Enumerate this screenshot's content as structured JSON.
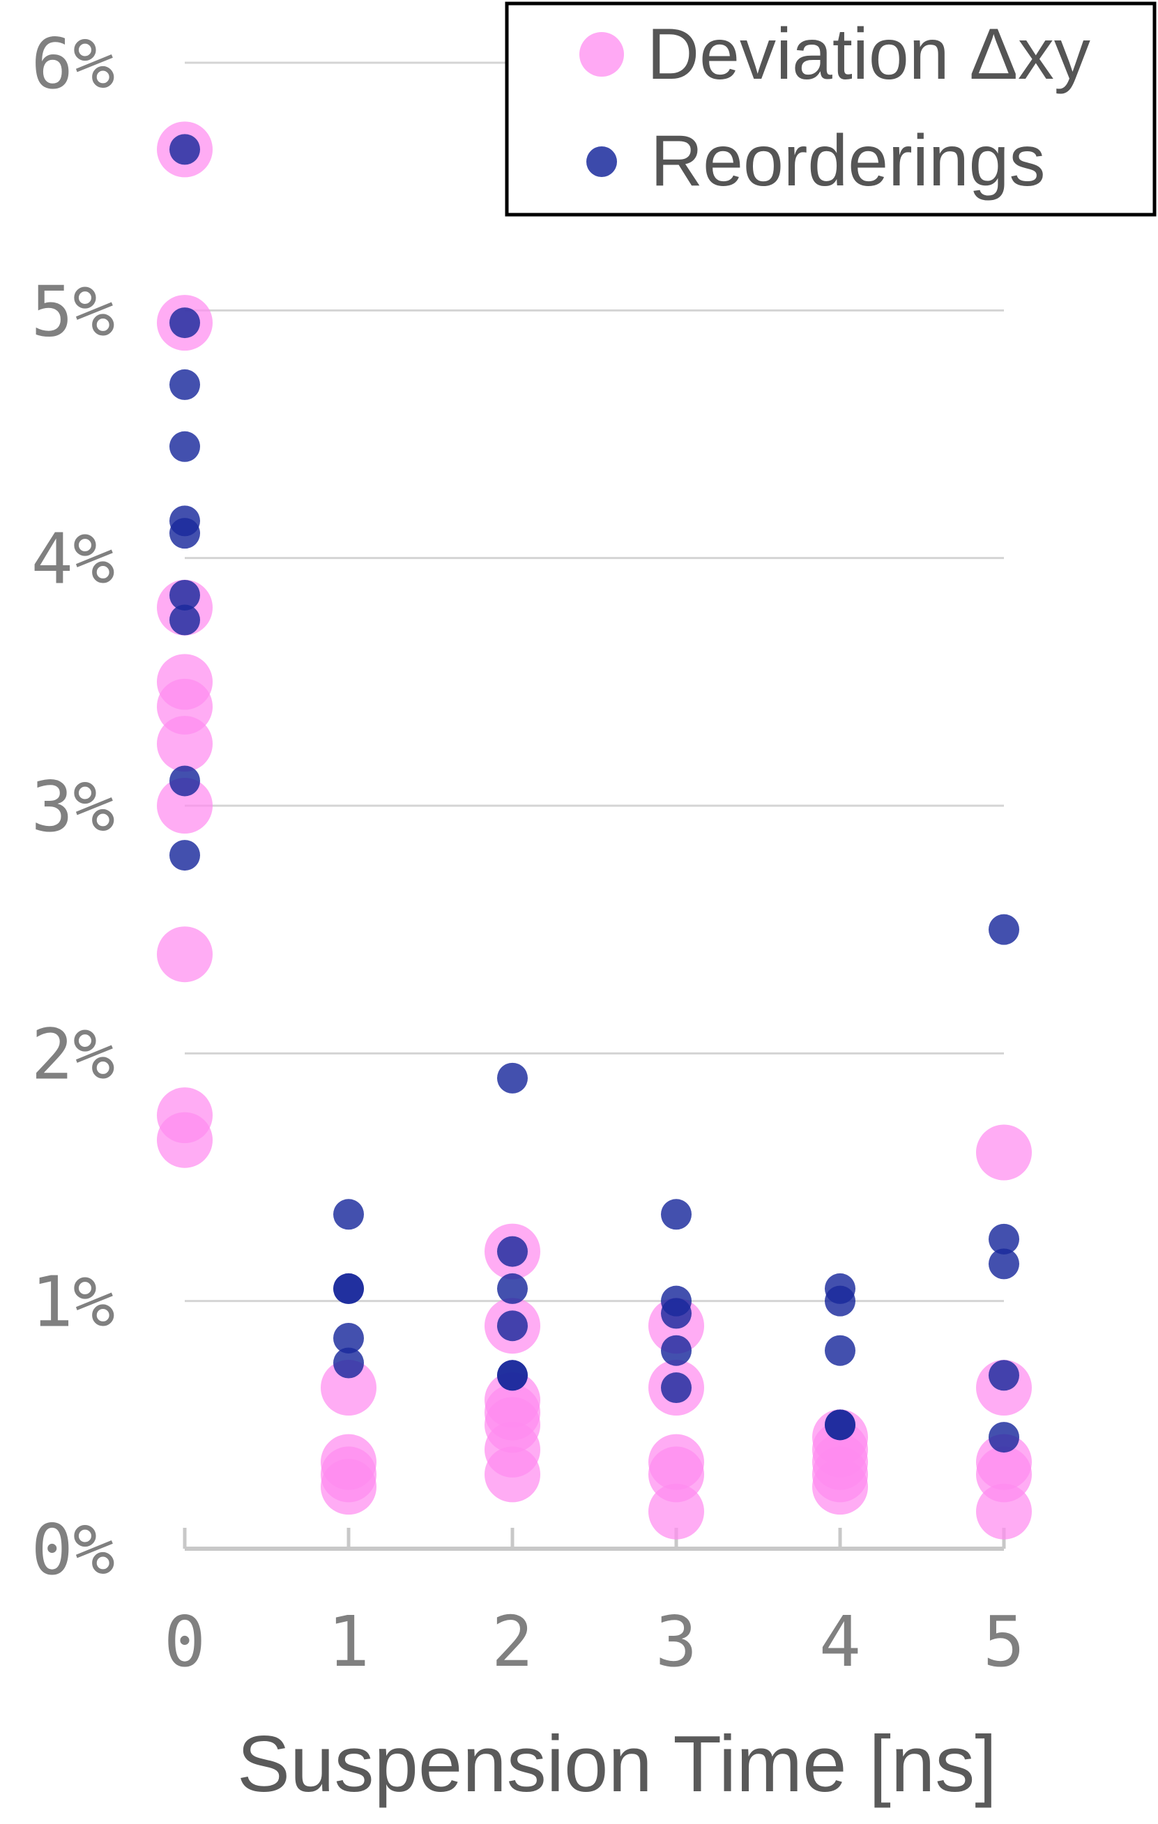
{
  "chart_data": {
    "type": "scatter",
    "xlabel": "Suspension Time [ns]",
    "ylabel": "",
    "x_ticks": [
      "0",
      "1",
      "2",
      "3",
      "4",
      "5"
    ],
    "y_ticks": [
      "0%",
      "1%",
      "2%",
      "3%",
      "4%",
      "5%",
      "6%"
    ],
    "xlim": [
      0,
      5
    ],
    "ylim": [
      0,
      6
    ],
    "grid": true,
    "legend_position": "top-right",
    "series": [
      {
        "name": "Deviation Δxy",
        "color": "#ff8cf0",
        "marker": "large-circle",
        "points": [
          {
            "x": 0,
            "y": 5.65
          },
          {
            "x": 0,
            "y": 4.95
          },
          {
            "x": 0,
            "y": 3.8
          },
          {
            "x": 0,
            "y": 3.5
          },
          {
            "x": 0,
            "y": 3.4
          },
          {
            "x": 0,
            "y": 3.25
          },
          {
            "x": 0,
            "y": 3.0
          },
          {
            "x": 0,
            "y": 2.4
          },
          {
            "x": 0,
            "y": 1.75
          },
          {
            "x": 0,
            "y": 1.65
          },
          {
            "x": 1,
            "y": 0.65
          },
          {
            "x": 1,
            "y": 0.35
          },
          {
            "x": 1,
            "y": 0.3
          },
          {
            "x": 1,
            "y": 0.25
          },
          {
            "x": 2,
            "y": 1.2
          },
          {
            "x": 2,
            "y": 0.9
          },
          {
            "x": 2,
            "y": 0.6
          },
          {
            "x": 2,
            "y": 0.55
          },
          {
            "x": 2,
            "y": 0.5
          },
          {
            "x": 2,
            "y": 0.4
          },
          {
            "x": 2,
            "y": 0.3
          },
          {
            "x": 3,
            "y": 0.9
          },
          {
            "x": 3,
            "y": 0.65
          },
          {
            "x": 3,
            "y": 0.35
          },
          {
            "x": 3,
            "y": 0.3
          },
          {
            "x": 3,
            "y": 0.15
          },
          {
            "x": 4,
            "y": 0.45
          },
          {
            "x": 4,
            "y": 0.4
          },
          {
            "x": 4,
            "y": 0.35
          },
          {
            "x": 4,
            "y": 0.3
          },
          {
            "x": 4,
            "y": 0.25
          },
          {
            "x": 5,
            "y": 1.6
          },
          {
            "x": 5,
            "y": 0.65
          },
          {
            "x": 5,
            "y": 0.35
          },
          {
            "x": 5,
            "y": 0.3
          },
          {
            "x": 5,
            "y": 0.15
          }
        ]
      },
      {
        "name": "Reorderings",
        "color": "#1a2a9c",
        "marker": "small-circle",
        "points": [
          {
            "x": 0,
            "y": 5.65
          },
          {
            "x": 0,
            "y": 4.95
          },
          {
            "x": 0,
            "y": 4.7
          },
          {
            "x": 0,
            "y": 4.45
          },
          {
            "x": 0,
            "y": 4.15
          },
          {
            "x": 0,
            "y": 4.1
          },
          {
            "x": 0,
            "y": 3.85
          },
          {
            "x": 0,
            "y": 3.75
          },
          {
            "x": 0,
            "y": 3.1
          },
          {
            "x": 0,
            "y": 2.8
          },
          {
            "x": 1,
            "y": 1.35
          },
          {
            "x": 1,
            "y": 1.05
          },
          {
            "x": 1,
            "y": 1.05
          },
          {
            "x": 1,
            "y": 0.85
          },
          {
            "x": 1,
            "y": 0.75
          },
          {
            "x": 2,
            "y": 1.9
          },
          {
            "x": 2,
            "y": 1.2
          },
          {
            "x": 2,
            "y": 1.05
          },
          {
            "x": 2,
            "y": 0.9
          },
          {
            "x": 2,
            "y": 0.7
          },
          {
            "x": 2,
            "y": 0.7
          },
          {
            "x": 3,
            "y": 1.35
          },
          {
            "x": 3,
            "y": 1.0
          },
          {
            "x": 3,
            "y": 0.95
          },
          {
            "x": 3,
            "y": 0.8
          },
          {
            "x": 3,
            "y": 0.65
          },
          {
            "x": 4,
            "y": 1.05
          },
          {
            "x": 4,
            "y": 1.0
          },
          {
            "x": 4,
            "y": 0.8
          },
          {
            "x": 4,
            "y": 0.5
          },
          {
            "x": 4,
            "y": 0.5
          },
          {
            "x": 5,
            "y": 2.5
          },
          {
            "x": 5,
            "y": 1.25
          },
          {
            "x": 5,
            "y": 1.15
          },
          {
            "x": 5,
            "y": 0.7
          },
          {
            "x": 5,
            "y": 0.45
          }
        ]
      }
    ]
  }
}
